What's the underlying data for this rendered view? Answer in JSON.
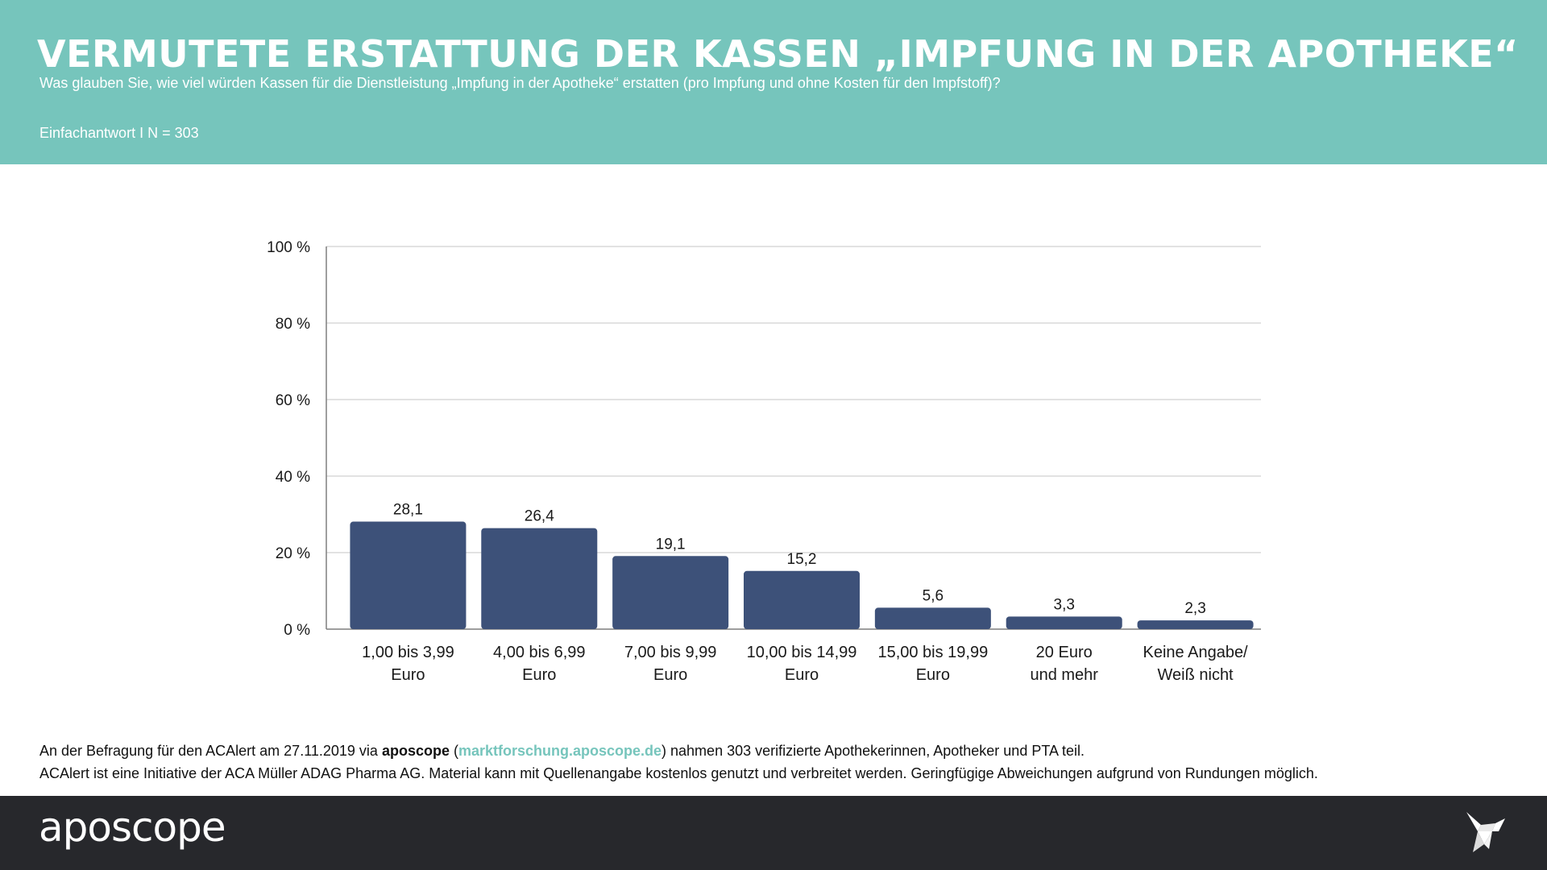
{
  "header": {
    "title": "VERMUTETE ERSTATTUNG DER KASSEN „IMPFUNG IN DER APOTHEKE“",
    "subtitle": "Was glauben Sie, wie viel würden Kassen für die Dienstleistung „Impfung in der Apotheke“ erstatten (pro Impfung und ohne Kosten für den Impfstoff)?",
    "sample": "Einfachantwort I N = 303"
  },
  "chart_data": {
    "type": "bar",
    "categories": [
      [
        "1,00 bis 3,99",
        "Euro"
      ],
      [
        "4,00 bis 6,99",
        "Euro"
      ],
      [
        "7,00 bis 9,99",
        "Euro"
      ],
      [
        "10,00 bis 14,99",
        "Euro"
      ],
      [
        "15,00 bis 19,99",
        "Euro"
      ],
      [
        "20 Euro",
        "und mehr"
      ],
      [
        "Keine Angabe/",
        "Weiß nicht"
      ]
    ],
    "values": [
      28.1,
      26.4,
      19.1,
      15.2,
      5.6,
      3.3,
      2.3
    ],
    "value_labels": [
      "28,1",
      "26,4",
      "19,1",
      "15,2",
      "5,6",
      "3,3",
      "2,3"
    ],
    "ylim": [
      0,
      100
    ],
    "yticks": [
      0,
      20,
      40,
      60,
      80,
      100
    ],
    "ytick_labels": [
      "0 %",
      "20 %",
      "40 %",
      "60 %",
      "80 %",
      "100 %"
    ],
    "grid": true,
    "bar_color": "#3d5179",
    "grid_color": "#d9d9d9"
  },
  "notes": {
    "line1_pre": "An der Befragung für den ACAlert am 27.11.2019 via ",
    "line1_brand": "aposcope",
    "line1_paren_open": " (",
    "line1_link": "marktforschung.aposcope.de",
    "line1_post": ") nahmen 303 verifizierte Apothekerinnen, Apotheker und PTA teil.",
    "line2": "ACAlert ist eine Initiative der ACA Müller ADAG Pharma AG. Material kann mit Quellenangabe kostenlos genutzt und verbreitet werden. Geringfügige Abweichungen aufgrund von Rundungen möglich."
  },
  "footer": {
    "logo_text": "aposcope",
    "bird_icon": "origami-bird-icon"
  },
  "colors": {
    "header_bg": "#76c5bc",
    "footer_bg": "#27282c",
    "accent": "#76c5bc"
  }
}
